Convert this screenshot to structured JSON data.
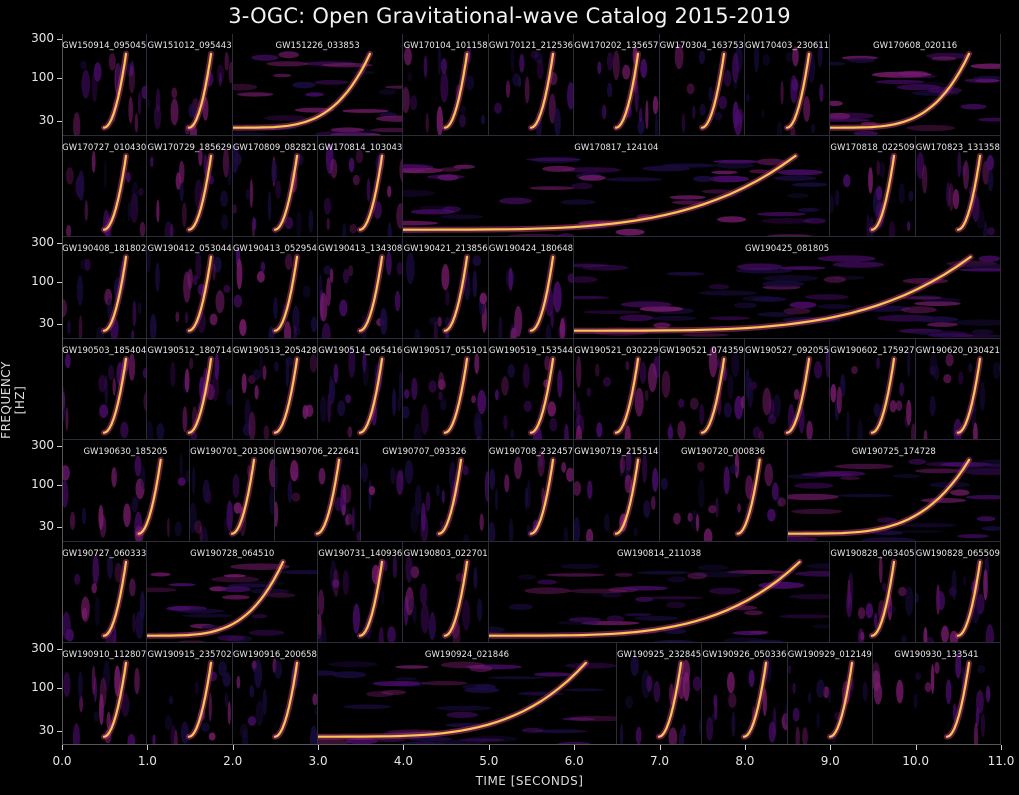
{
  "chart_data": {
    "type": "heatmap",
    "title": "3-OGC: Open Gravitational-wave Catalog 2015-2019",
    "xlabel": "TIME [SECONDS]",
    "ylabel": "FREQUENCY [HZ]",
    "xlim": [
      0.0,
      11.0
    ],
    "ylim": [
      20,
      350
    ],
    "yscale": "log",
    "x_ticks": [
      "0.0",
      "1.0",
      "2.0",
      "3.0",
      "4.0",
      "5.0",
      "6.0",
      "7.0",
      "8.0",
      "9.0",
      "10.0",
      "11.0"
    ],
    "y_ticks": [
      "300",
      "100",
      "30"
    ],
    "colormap": "inferno",
    "rows": [
      {
        "y_ticks_shown": true,
        "events": [
          {
            "name": "GW150914_095045",
            "start": 0.0,
            "duration": 1.0
          },
          {
            "name": "GW151012_095443",
            "start": 1.0,
            "duration": 1.0
          },
          {
            "name": "GW151226_033853",
            "start": 2.0,
            "duration": 2.0
          },
          {
            "name": "GW170104_101158",
            "start": 4.0,
            "duration": 1.0
          },
          {
            "name": "GW170121_212536",
            "start": 5.0,
            "duration": 1.0
          },
          {
            "name": "GW170202_135657",
            "start": 6.0,
            "duration": 1.0
          },
          {
            "name": "GW170304_163753",
            "start": 7.0,
            "duration": 1.0
          },
          {
            "name": "GW170403_230611",
            "start": 8.0,
            "duration": 1.0
          },
          {
            "name": "GW170608_020116",
            "start": 9.0,
            "duration": 2.0
          }
        ]
      },
      {
        "y_ticks_shown": false,
        "events": [
          {
            "name": "GW170727_010430",
            "start": 0.0,
            "duration": 1.0
          },
          {
            "name": "GW170729_185629",
            "start": 1.0,
            "duration": 1.0
          },
          {
            "name": "GW170809_082821",
            "start": 2.0,
            "duration": 1.0
          },
          {
            "name": "GW170814_103043",
            "start": 3.0,
            "duration": 1.0
          },
          {
            "name": "GW170817_124104",
            "start": 4.0,
            "duration": 5.0
          },
          {
            "name": "GW170818_022509",
            "start": 9.0,
            "duration": 1.0
          },
          {
            "name": "GW170823_131358",
            "start": 10.0,
            "duration": 1.0
          }
        ]
      },
      {
        "y_ticks_shown": true,
        "events": [
          {
            "name": "GW190408_181802",
            "start": 0.0,
            "duration": 1.0
          },
          {
            "name": "GW190412_053044",
            "start": 1.0,
            "duration": 1.0
          },
          {
            "name": "GW190413_052954",
            "start": 2.0,
            "duration": 1.0
          },
          {
            "name": "GW190413_134308",
            "start": 3.0,
            "duration": 1.0
          },
          {
            "name": "GW190421_213856",
            "start": 4.0,
            "duration": 1.0
          },
          {
            "name": "GW190424_180648",
            "start": 5.0,
            "duration": 1.0
          },
          {
            "name": "GW190425_081805",
            "start": 6.0,
            "duration": 5.0
          }
        ]
      },
      {
        "y_ticks_shown": false,
        "events": [
          {
            "name": "GW190503_185404",
            "start": 0.0,
            "duration": 1.0
          },
          {
            "name": "GW190512_180714",
            "start": 1.0,
            "duration": 1.0
          },
          {
            "name": "GW190513_205428",
            "start": 2.0,
            "duration": 1.0
          },
          {
            "name": "GW190514_065416",
            "start": 3.0,
            "duration": 1.0
          },
          {
            "name": "GW190517_055101",
            "start": 4.0,
            "duration": 1.0
          },
          {
            "name": "GW190519_153544",
            "start": 5.0,
            "duration": 1.0
          },
          {
            "name": "GW190521_030229",
            "start": 6.0,
            "duration": 1.0
          },
          {
            "name": "GW190521_074359",
            "start": 7.0,
            "duration": 1.0
          },
          {
            "name": "GW190527_092055",
            "start": 8.0,
            "duration": 1.0
          },
          {
            "name": "GW190602_175927",
            "start": 9.0,
            "duration": 1.0
          },
          {
            "name": "GW190620_030421",
            "start": 10.0,
            "duration": 1.0
          }
        ]
      },
      {
        "y_ticks_shown": true,
        "events": [
          {
            "name": "GW190630_185205",
            "start": 0.0,
            "duration": 1.5
          },
          {
            "name": "GW190701_203306",
            "start": 1.5,
            "duration": 1.0
          },
          {
            "name": "GW190706_222641",
            "start": 2.5,
            "duration": 1.0
          },
          {
            "name": "GW190707_093326",
            "start": 3.5,
            "duration": 1.5
          },
          {
            "name": "GW190708_232457",
            "start": 5.0,
            "duration": 1.0
          },
          {
            "name": "GW190719_215514",
            "start": 6.0,
            "duration": 1.0
          },
          {
            "name": "GW190720_000836",
            "start": 7.0,
            "duration": 1.5
          },
          {
            "name": "GW190725_174728",
            "start": 8.5,
            "duration": 2.5
          }
        ]
      },
      {
        "y_ticks_shown": false,
        "events": [
          {
            "name": "GW190727_060333",
            "start": 0.0,
            "duration": 1.0
          },
          {
            "name": "GW190728_064510",
            "start": 1.0,
            "duration": 2.0
          },
          {
            "name": "GW190731_140936",
            "start": 3.0,
            "duration": 1.0
          },
          {
            "name": "GW190803_022701",
            "start": 4.0,
            "duration": 1.0
          },
          {
            "name": "GW190814_211038",
            "start": 5.0,
            "duration": 4.0
          },
          {
            "name": "GW190828_063405",
            "start": 9.0,
            "duration": 1.0
          },
          {
            "name": "GW190828_065509",
            "start": 10.0,
            "duration": 1.0
          }
        ]
      },
      {
        "y_ticks_shown": true,
        "events": [
          {
            "name": "GW190910_112807",
            "start": 0.0,
            "duration": 1.0
          },
          {
            "name": "GW190915_235702",
            "start": 1.0,
            "duration": 1.0
          },
          {
            "name": "GW190916_200658",
            "start": 2.0,
            "duration": 1.0
          },
          {
            "name": "GW190924_021846",
            "start": 3.0,
            "duration": 3.5
          },
          {
            "name": "GW190925_232845",
            "start": 6.5,
            "duration": 1.0
          },
          {
            "name": "GW190926_050336",
            "start": 7.5,
            "duration": 1.0
          },
          {
            "name": "GW190929_012149",
            "start": 8.5,
            "duration": 1.0
          },
          {
            "name": "GW190930_133541",
            "start": 9.5,
            "duration": 1.5
          }
        ]
      }
    ]
  }
}
